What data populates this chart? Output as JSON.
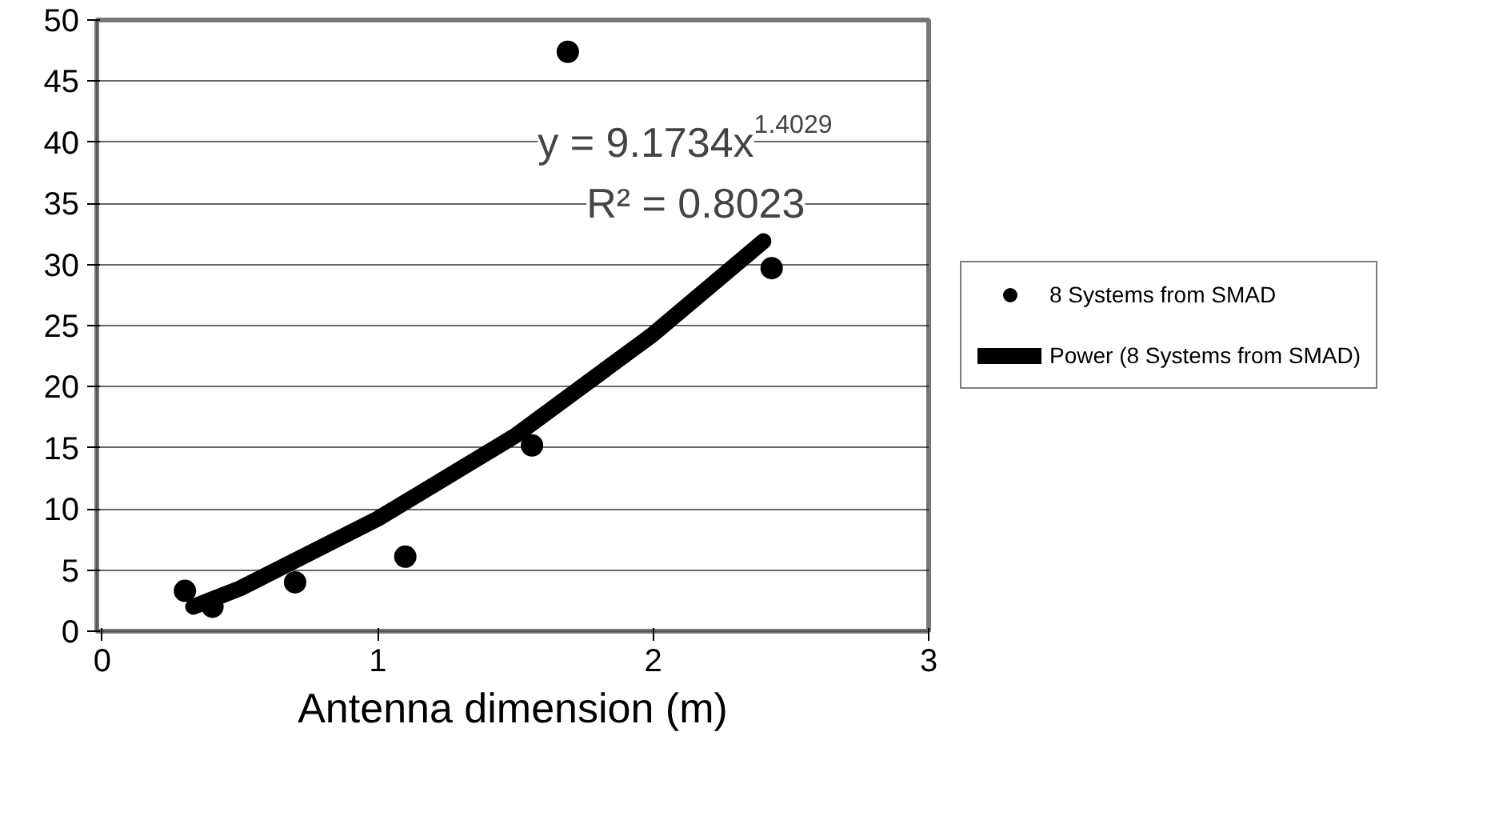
{
  "chart_data": {
    "type": "scatter",
    "xlabel": "Antenna dimension (m)",
    "xlim": [
      -0.02,
      3
    ],
    "ylim": [
      0,
      50
    ],
    "xticks": [
      0,
      1,
      2,
      3
    ],
    "yticks": [
      0,
      5,
      10,
      15,
      20,
      25,
      30,
      35,
      40,
      45,
      50
    ],
    "grid": "y",
    "legend": "right",
    "series": [
      {
        "name": "8 Systems from SMAD",
        "marker": "circle",
        "color": "#000000",
        "x": [
          0.3,
          0.4,
          0.7,
          1.1,
          1.56,
          1.69,
          2.43
        ],
        "values": [
          3.3,
          2.0,
          4.0,
          6.1,
          15.2,
          47.4,
          29.7
        ]
      },
      {
        "name": "Power (8 Systems from SMAD)",
        "type": "line",
        "marker": "none",
        "color": "#000000",
        "x": [
          0.33,
          0.5,
          1.0,
          1.5,
          2.0,
          2.4
        ],
        "values": [
          2.0,
          3.5,
          9.2,
          16.0,
          24.3,
          31.9
        ]
      }
    ],
    "annotations": [
      "y = 9.1734x$^{1.4029}$",
      "R² = 0.8023"
    ]
  }
}
